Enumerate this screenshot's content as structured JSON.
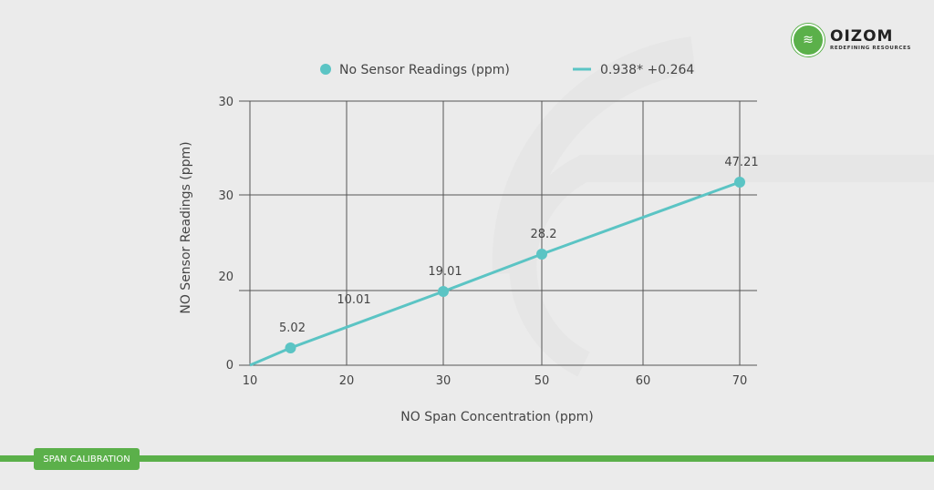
{
  "brand": {
    "name": "OIZOM",
    "tagline": "REDEFINING RESOURCES",
    "color": "#5bb04a"
  },
  "badge": {
    "label": "SPAN CALIBRATION"
  },
  "chart_data": {
    "type": "line",
    "title": "",
    "xlabel": "NO Span Concentration (ppm)",
    "ylabel": "NO  Sensor Readings (ppm)",
    "x_ticks": [
      "10",
      "20",
      "30",
      "50",
      "60",
      "70"
    ],
    "y_ticks": [
      "0",
      "20",
      "30",
      "30"
    ],
    "grid": true,
    "legend": {
      "position": "top",
      "entries": [
        "No Sensor Readings (ppm)",
        "0.938* +0.264"
      ]
    },
    "series": [
      {
        "name": "No Sensor Readings (ppm)",
        "marker": "circle",
        "color": "#5bc4c4",
        "x": [
          14.2,
          30,
          50,
          70
        ],
        "labels": [
          "5.02",
          "19.01",
          "28.2",
          "47.21"
        ]
      },
      {
        "name": "0.938* +0.264",
        "marker": "line",
        "color": "#5bc4c4"
      }
    ],
    "annotations": [
      "10.01"
    ]
  }
}
